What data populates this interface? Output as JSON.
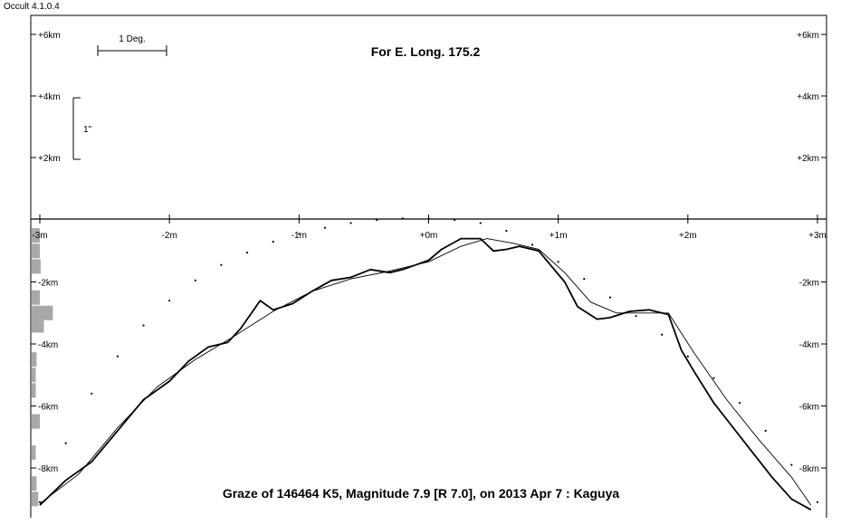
{
  "app": {
    "title": "Occult 4.1.0.4"
  },
  "chart_data": {
    "type": "line",
    "title": "Graze of  146464 K5,  Magnitude 7.9 [R 7.0],  on 2013 Apr  7  :  Kaguya",
    "subtitle": "For E. Long. 175.2",
    "scale_bars": {
      "horizontal_label": "1 Deg.",
      "vertical_label": "1\""
    },
    "x_axis": {
      "unit": "m",
      "range": [
        -3,
        3
      ],
      "ticks": [
        -3,
        -2,
        -1,
        0,
        1,
        2,
        3
      ],
      "tick_labels": [
        "-3m",
        "-2m",
        "-1m",
        "+0m",
        "+1m",
        "+2m",
        "+3m"
      ]
    },
    "y_axis_upper": {
      "unit": "km",
      "range": [
        0,
        6
      ],
      "ticks": [
        2,
        4,
        6
      ],
      "tick_labels": [
        "+2km",
        "+4km",
        "+6km"
      ]
    },
    "y_axis_lower": {
      "unit": "km",
      "range": [
        -9.3,
        0
      ],
      "ticks": [
        -2,
        -4,
        -6,
        -8
      ],
      "tick_labels": [
        "-2km",
        "-4km",
        "-6km",
        "-8km"
      ]
    },
    "series": [
      {
        "style": "thick-line",
        "x": [
          -3.0,
          -2.8,
          -2.6,
          -2.4,
          -2.2,
          -2.0,
          -1.85,
          -1.7,
          -1.55,
          -1.45,
          -1.3,
          -1.2,
          -1.05,
          -0.9,
          -0.75,
          -0.6,
          -0.45,
          -0.3,
          -0.2,
          -0.1,
          0.0,
          0.1,
          0.25,
          0.4,
          0.5,
          0.6,
          0.7,
          0.85,
          0.95,
          1.05,
          1.15,
          1.3,
          1.4,
          1.55,
          1.7,
          1.85,
          1.95,
          2.05,
          2.2,
          2.35,
          2.5,
          2.65,
          2.8,
          2.95
        ],
        "y": [
          -9.2,
          -8.4,
          -7.8,
          -6.8,
          -5.8,
          -5.2,
          -4.55,
          -4.1,
          -3.95,
          -3.5,
          -2.6,
          -2.9,
          -2.7,
          -2.3,
          -1.95,
          -1.85,
          -1.6,
          -1.7,
          -1.6,
          -1.45,
          -1.3,
          -0.95,
          -0.6,
          -0.6,
          -1.0,
          -0.95,
          -0.85,
          -1.0,
          -1.5,
          -2.0,
          -2.8,
          -3.2,
          -3.15,
          -2.95,
          -2.9,
          -3.05,
          -4.2,
          -4.9,
          -5.9,
          -6.7,
          -7.5,
          -8.3,
          -9.0,
          -9.35
        ]
      },
      {
        "style": "thin-line",
        "x": [
          -3.0,
          -2.7,
          -2.4,
          -2.1,
          -1.8,
          -1.5,
          -1.2,
          -0.9,
          -0.6,
          -0.3,
          0.0,
          0.25,
          0.45,
          0.65,
          0.85,
          1.05,
          1.25,
          1.45,
          1.65,
          1.85,
          2.05,
          2.3,
          2.55,
          2.8,
          2.95
        ],
        "y": [
          -9.15,
          -8.2,
          -6.7,
          -5.4,
          -4.5,
          -3.75,
          -2.95,
          -2.3,
          -1.9,
          -1.65,
          -1.35,
          -0.85,
          -0.6,
          -0.75,
          -0.95,
          -1.7,
          -2.65,
          -3.0,
          -3.0,
          -3.0,
          -4.3,
          -5.8,
          -7.1,
          -8.3,
          -9.2
        ]
      },
      {
        "style": "dotted",
        "x": [
          -3.0,
          -2.8,
          -2.6,
          -2.4,
          -2.2,
          -2.0,
          -1.8,
          -1.6,
          -1.4,
          -1.2,
          -1.0,
          -0.8,
          -0.6,
          -0.4,
          -0.2,
          0.0,
          0.2,
          0.4,
          0.6,
          0.8,
          1.0,
          1.2,
          1.4,
          1.6,
          1.8,
          2.0,
          2.2,
          2.4,
          2.6,
          2.8,
          3.0
        ],
        "y": [
          -9.1,
          -7.2,
          -5.6,
          -4.4,
          -3.4,
          -2.6,
          -1.95,
          -1.45,
          -1.05,
          -0.7,
          -0.45,
          -0.25,
          -0.1,
          0.0,
          0.05,
          0.05,
          0.0,
          -0.1,
          -0.35,
          -0.8,
          -1.35,
          -1.9,
          -2.5,
          -3.1,
          -3.7,
          -4.4,
          -5.1,
          -5.9,
          -6.8,
          -7.9,
          -9.1
        ]
      }
    ],
    "histogram": {
      "y": [
        -0.5,
        -1.0,
        -1.5,
        -2.5,
        -3.0,
        -3.4,
        -4.5,
        -5.0,
        -5.5,
        -6.5,
        -7.5,
        -8.5,
        -9.0
      ],
      "values": [
        1.0,
        1.0,
        1.1,
        1.0,
        2.6,
        1.5,
        0.6,
        0.5,
        0.5,
        1.0,
        0.5,
        0.6,
        0.8
      ]
    },
    "grid": false
  }
}
